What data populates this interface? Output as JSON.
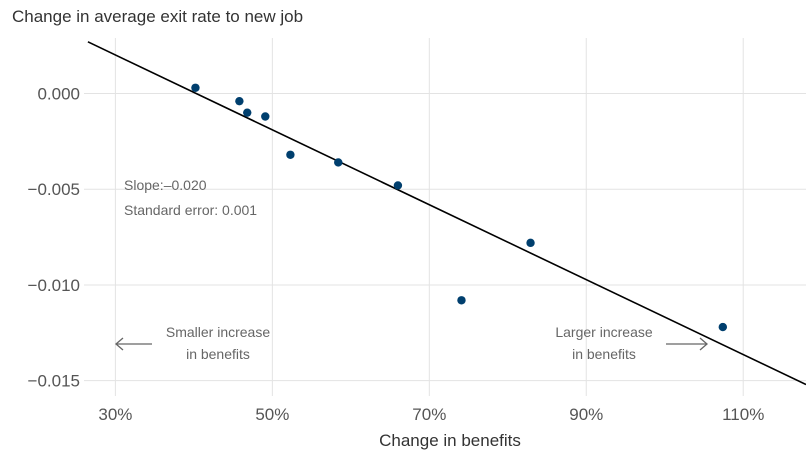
{
  "chart_data": {
    "type": "scatter",
    "title": "Change in average exit rate to new job",
    "xlabel": "Change in benefits",
    "ylabel": "",
    "xlim": [
      26,
      118
    ],
    "ylim": [
      -0.0158,
      0.0029
    ],
    "x_ticks": [
      30,
      50,
      70,
      90,
      110
    ],
    "x_tick_labels": [
      "30%",
      "50%",
      "70%",
      "90%",
      "110%"
    ],
    "y_ticks": [
      0.0,
      -0.005,
      -0.01,
      -0.015
    ],
    "y_tick_labels": [
      "0.000",
      "−0.005",
      "−0.010",
      "−0.015"
    ],
    "grid": true,
    "points": [
      {
        "x": 40.2,
        "y": 0.0003
      },
      {
        "x": 45.8,
        "y": -0.0004
      },
      {
        "x": 46.8,
        "y": -0.001
      },
      {
        "x": 49.1,
        "y": -0.0012
      },
      {
        "x": 52.3,
        "y": -0.0032
      },
      {
        "x": 58.4,
        "y": -0.0036
      },
      {
        "x": 66.0,
        "y": -0.0048
      },
      {
        "x": 74.1,
        "y": -0.0108
      },
      {
        "x": 82.9,
        "y": -0.0078
      },
      {
        "x": 107.4,
        "y": -0.0122
      }
    ],
    "fit_line": {
      "slope": -0.02,
      "x": [
        26.5,
        118
      ],
      "y": [
        0.0027,
        -0.0152
      ]
    },
    "point_color": "#003f6e",
    "line_color": "#000000",
    "stats": {
      "slope_label": "Slope:–0.020",
      "se_label": "Standard error: 0.001"
    },
    "annotations": {
      "left_line1": "Smaller increase",
      "left_line2": "in benefits",
      "right_line1": "Larger increase",
      "right_line2": "in benefits"
    }
  }
}
